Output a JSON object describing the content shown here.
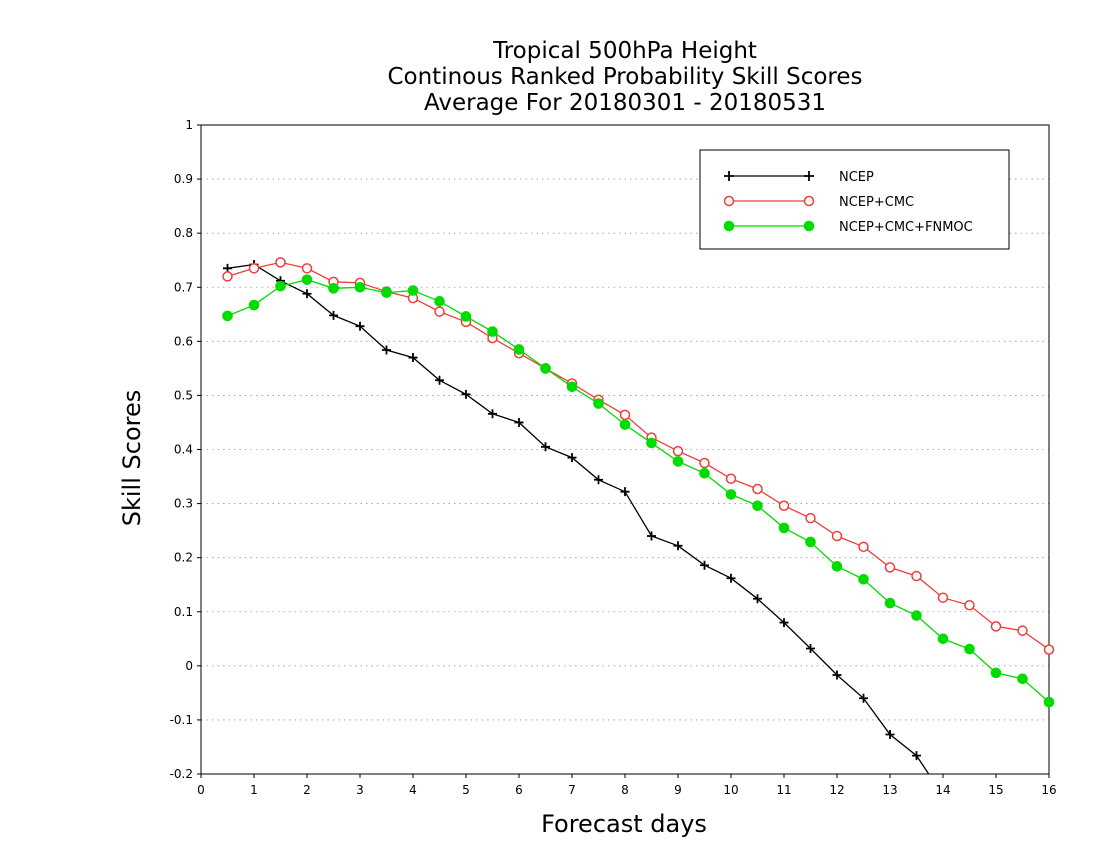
{
  "chart_data": {
    "type": "line",
    "title": [
      "Tropical 500hPa Height",
      "Continous Ranked Probability Skill Scores",
      "Average For 20180301 - 20180531"
    ],
    "xlabel": "Forecast days",
    "ylabel": "Skill Scores",
    "xlim": [
      0,
      16
    ],
    "ylim": [
      -0.2,
      1
    ],
    "xticks": [
      "0",
      "1",
      "2",
      "3",
      "4",
      "5",
      "6",
      "7",
      "8",
      "9",
      "10",
      "11",
      "12",
      "13",
      "14",
      "15",
      "16"
    ],
    "yticks": [
      "1",
      "0.9",
      "0.8",
      "0.7",
      "0.6",
      "0.5",
      "0.4",
      "0.3",
      "0.2",
      "0.1",
      "0",
      "-0.1",
      "-0.2"
    ],
    "grid": true,
    "legend_position": "top-right",
    "x": [
      0.5,
      1,
      1.5,
      2,
      2.5,
      3,
      3.5,
      4,
      4.5,
      5,
      5.5,
      6,
      6.5,
      7,
      7.5,
      8,
      8.5,
      9,
      9.5,
      10,
      10.5,
      11,
      11.5,
      12,
      12.5,
      13,
      13.5,
      14,
      14.5,
      15,
      15.5,
      16
    ],
    "series": [
      {
        "name": "NCEP",
        "color": "#000000",
        "marker": "plus",
        "values": [
          0.735,
          0.742,
          0.712,
          0.688,
          0.648,
          0.628,
          0.584,
          0.57,
          0.528,
          0.502,
          0.466,
          0.45,
          0.405,
          0.385,
          0.344,
          0.322,
          0.24,
          0.222,
          0.186,
          0.162,
          0.124,
          0.08,
          0.032,
          -0.017,
          -0.06,
          -0.127,
          -0.166,
          -0.24,
          null,
          null,
          null,
          null
        ]
      },
      {
        "name": "NCEP+CMC",
        "color": "#f03c3c",
        "marker": "open-circle",
        "values": [
          0.72,
          0.735,
          0.746,
          0.735,
          0.71,
          0.708,
          0.692,
          0.68,
          0.655,
          0.636,
          0.606,
          0.578,
          0.55,
          0.522,
          0.492,
          0.464,
          0.422,
          0.397,
          0.375,
          0.346,
          0.327,
          0.296,
          0.273,
          0.24,
          0.22,
          0.182,
          0.166,
          0.126,
          0.112,
          0.073,
          0.065,
          0.03
        ]
      },
      {
        "name": "NCEP+CMC+FNMOC",
        "color": "#00dc00",
        "marker": "filled-circle",
        "values": [
          0.647,
          0.667,
          0.702,
          0.714,
          0.698,
          0.7,
          0.69,
          0.694,
          0.674,
          0.646,
          0.618,
          0.585,
          0.55,
          0.516,
          0.485,
          0.446,
          0.412,
          0.378,
          0.356,
          0.317,
          0.296,
          0.255,
          0.229,
          0.184,
          0.16,
          0.116,
          0.093,
          0.05,
          0.031,
          -0.013,
          -0.024,
          -0.067
        ]
      }
    ]
  }
}
